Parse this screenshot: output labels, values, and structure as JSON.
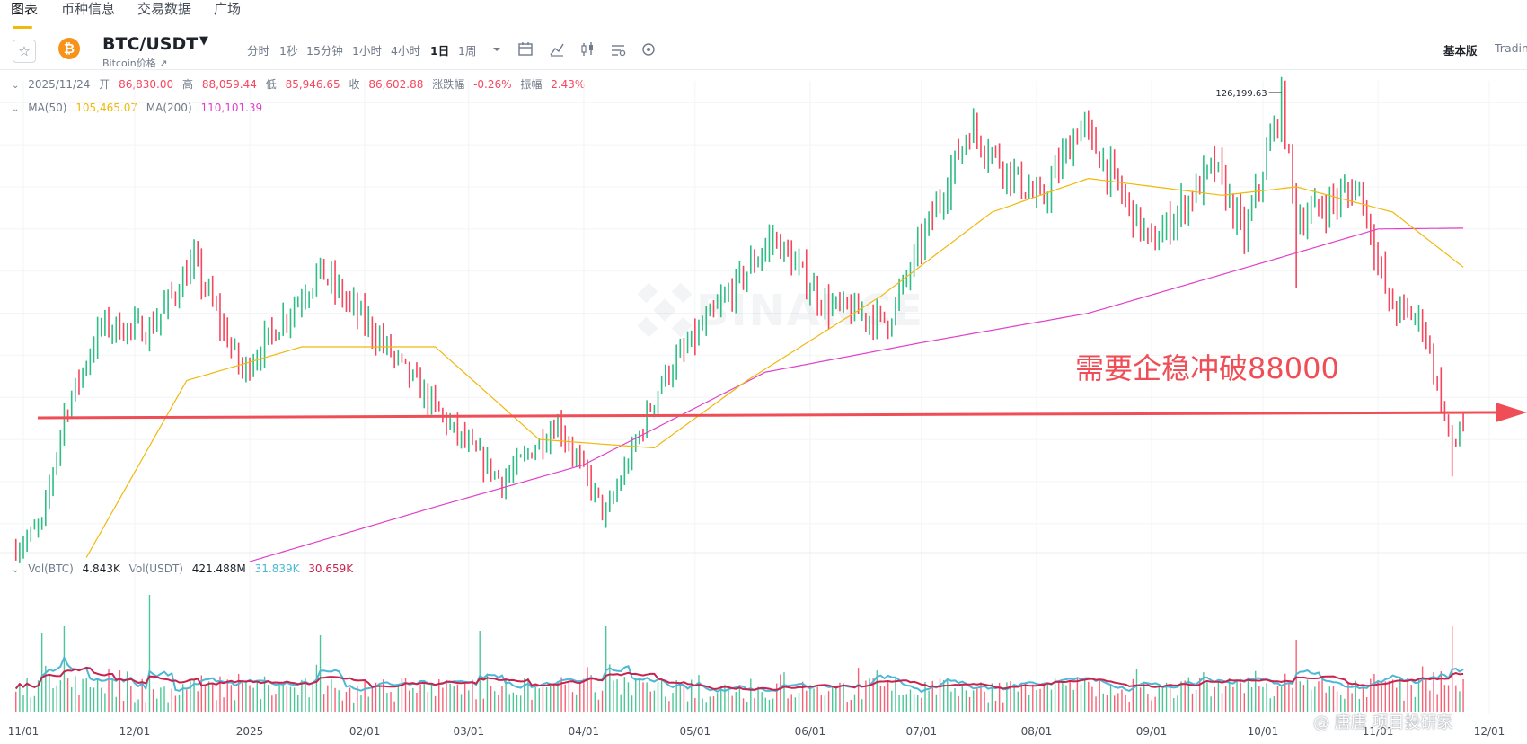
{
  "nav": {
    "tabs": [
      "图表",
      "币种信息",
      "交易数据",
      "广场"
    ]
  },
  "symbol": {
    "pair": "BTC/USDT",
    "sub": "Bitcoin价格 ↗"
  },
  "intervals": [
    "分时",
    "1秒",
    "15分钟",
    "1小时",
    "4小时",
    "1日",
    "1周"
  ],
  "active_interval": "1日",
  "toolbar_icons": [
    "expand-icon",
    "calendar-icon",
    "indicator-icon",
    "drawing-icon",
    "settings-icon",
    "layout-icon"
  ],
  "view": {
    "basic": "基本版",
    "tradingview": "TradingView"
  },
  "ohlc": {
    "date": "2025/11/24",
    "open_label": "开",
    "open": "86,830.00",
    "high_label": "高",
    "high": "88,059.44",
    "low_label": "低",
    "low": "85,946.65",
    "close_label": "收",
    "close": "86,602.88",
    "change_label": "涨跌幅",
    "change": "-0.26%",
    "amp_label": "振幅",
    "amp": "2.43%"
  },
  "ma": {
    "ma50_label": "MA(50)",
    "ma50": "105,465.07",
    "ma200_label": "MA(200)",
    "ma200": "110,101.39"
  },
  "vol": {
    "vol_btc_label": "Vol(BTC)",
    "vol_btc": "4.843K",
    "vol_usdt_label": "Vol(USDT)",
    "vol_usdt": "421.488M",
    "ma1": "31.839K",
    "ma2": "30.659K"
  },
  "annotation": "需要企稳冲破88000",
  "high_marker": "126,199.63",
  "x_labels": [
    "11/01",
    "12/01",
    "2025",
    "02/01",
    "03/01",
    "04/01",
    "05/01",
    "06/01",
    "07/01",
    "08/01",
    "09/01",
    "10/01",
    "11/01",
    "12/01"
  ],
  "source_watermark": "@ 唐唐 项目投研家",
  "colors": {
    "up": "#2ebd85",
    "down": "#f6465d",
    "ma50": "#f0b90b",
    "ma200": "#e040c8",
    "arrow": "#f04e57",
    "vol_ma1": "#4bb8d6",
    "vol_ma2": "#c8224f"
  },
  "chart_data": {
    "type": "candlestick",
    "interval": "1日",
    "anchors_price": [
      [
        "2024-10-30",
        72000
      ],
      [
        "2024-11-06",
        75000
      ],
      [
        "2024-11-12",
        88000
      ],
      [
        "2024-11-22",
        98500
      ],
      [
        "2024-12-05",
        98000
      ],
      [
        "2024-12-17",
        106000
      ],
      [
        "2024-12-30",
        93000
      ],
      [
        "2025-01-20",
        105000
      ],
      [
        "2025-02-03",
        98000
      ],
      [
        "2025-02-25",
        86000
      ],
      [
        "2025-03-10",
        80000
      ],
      [
        "2025-03-25",
        87000
      ],
      [
        "2025-04-07",
        76000
      ],
      [
        "2025-04-22",
        92000
      ],
      [
        "2025-05-22",
        109000
      ],
      [
        "2025-06-05",
        101000
      ],
      [
        "2025-06-22",
        99000
      ],
      [
        "2025-07-14",
        122000
      ],
      [
        "2025-08-02",
        113000
      ],
      [
        "2025-08-13",
        122500
      ],
      [
        "2025-09-01",
        108000
      ],
      [
        "2025-09-18",
        117500
      ],
      [
        "2025-09-26",
        109000
      ],
      [
        "2025-10-06",
        125000
      ],
      [
        "2025-10-10",
        111000
      ],
      [
        "2025-10-27",
        115000
      ],
      [
        "2025-11-04",
        101000
      ],
      [
        "2025-11-13",
        99000
      ],
      [
        "2025-11-21",
        84000
      ],
      [
        "2025-11-24",
        86602.88
      ]
    ],
    "ma50_anchors": [
      [
        "2024-11-18",
        71000
      ],
      [
        "2024-12-15",
        92000
      ],
      [
        "2025-01-15",
        96000
      ],
      [
        "2025-02-20",
        96000
      ],
      [
        "2025-03-20",
        85000
      ],
      [
        "2025-04-20",
        84000
      ],
      [
        "2025-05-15",
        92000
      ],
      [
        "2025-06-20",
        102000
      ],
      [
        "2025-07-20",
        112000
      ],
      [
        "2025-08-15",
        116000
      ],
      [
        "2025-09-20",
        114000
      ],
      [
        "2025-10-10",
        115000
      ],
      [
        "2025-11-05",
        112000
      ],
      [
        "2025-11-24",
        105465.07
      ]
    ],
    "ma200_anchors": [
      [
        "2025-01-01",
        70500
      ],
      [
        "2025-02-20",
        77000
      ],
      [
        "2025-04-01",
        82000
      ],
      [
        "2025-05-20",
        93000
      ],
      [
        "2025-07-01",
        96500
      ],
      [
        "2025-08-15",
        100000
      ],
      [
        "2025-10-01",
        106000
      ],
      [
        "2025-11-01",
        110000
      ],
      [
        "2025-11-24",
        110101.39
      ]
    ],
    "high_marker": {
      "date": "2025-10-06",
      "value": 126199.63
    },
    "support_line": 88000,
    "volume_spikes": [
      [
        "2024-11-06",
        88
      ],
      [
        "2024-11-12",
        95
      ],
      [
        "2024-12-05",
        130
      ],
      [
        "2025-01-20",
        85
      ],
      [
        "2025-03-04",
        90
      ],
      [
        "2025-04-07",
        95
      ],
      [
        "2025-10-10",
        80
      ],
      [
        "2025-11-21",
        95
      ]
    ]
  }
}
